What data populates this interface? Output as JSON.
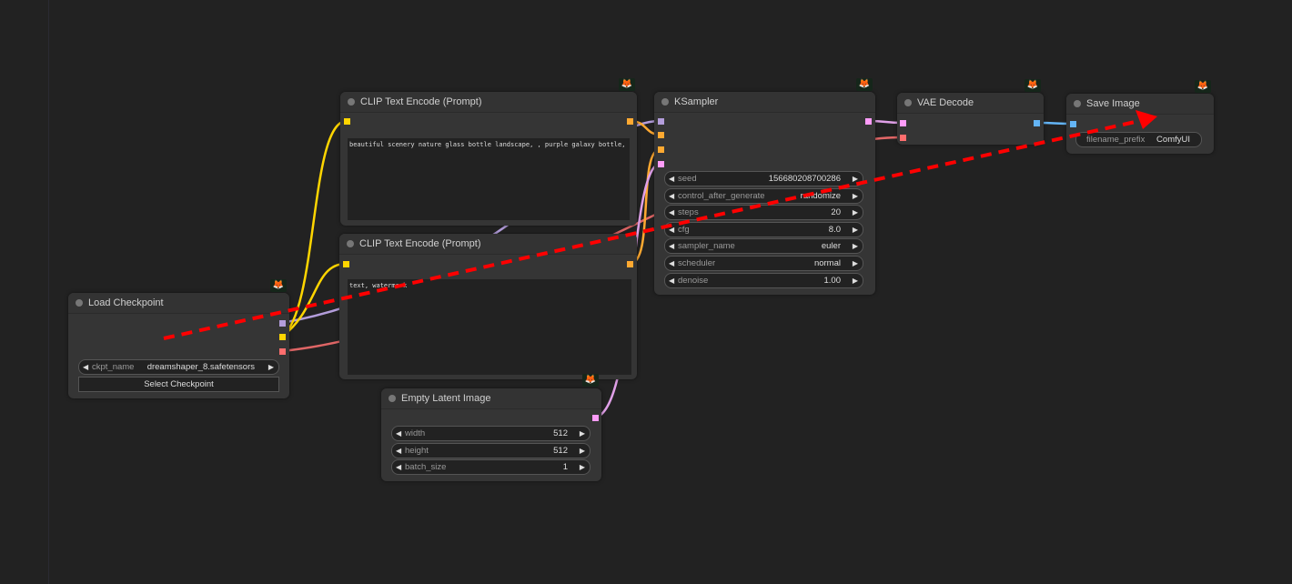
{
  "nodes": {
    "load_checkpoint": {
      "title": "Load Checkpoint",
      "ckpt_label": "ckpt_name",
      "ckpt_value": "dreamshaper_8.safetensors",
      "button": "Select Checkpoint"
    },
    "clip_positive": {
      "title": "CLIP Text Encode (Prompt)",
      "text": "beautiful scenery nature glass bottle landscape, , purple galaxy bottle,"
    },
    "clip_negative": {
      "title": "CLIP Text Encode (Prompt)",
      "text": "text, watermark"
    },
    "ksampler": {
      "title": "KSampler",
      "widgets": [
        {
          "label": "seed",
          "value": "156680208700286"
        },
        {
          "label": "control_after_generate",
          "value": "randomize"
        },
        {
          "label": "steps",
          "value": "20"
        },
        {
          "label": "cfg",
          "value": "8.0"
        },
        {
          "label": "sampler_name",
          "value": "euler"
        },
        {
          "label": "scheduler",
          "value": "normal"
        },
        {
          "label": "denoise",
          "value": "1.00"
        }
      ]
    },
    "vae_decode": {
      "title": "VAE Decode"
    },
    "save_image": {
      "title": "Save Image",
      "prefix_label": "filename_prefix",
      "prefix_value": "ComfyUI"
    },
    "empty_latent": {
      "title": "Empty Latent Image",
      "widgets": [
        {
          "label": "width",
          "value": "512"
        },
        {
          "label": "height",
          "value": "512"
        },
        {
          "label": "batch_size",
          "value": "1"
        }
      ]
    }
  },
  "icons": {
    "badge": "fox-icon",
    "arrow_left": "◀",
    "arrow_right": "▶",
    "fox": "🦊"
  },
  "colors": {
    "model": "#b39ddb",
    "clip": "#ffd500",
    "vae": "#ff6e6e",
    "conditioning": "#ffa931",
    "latent": "#ff9cf9",
    "image": "#64b5f6",
    "annotation": "#ff0000"
  }
}
